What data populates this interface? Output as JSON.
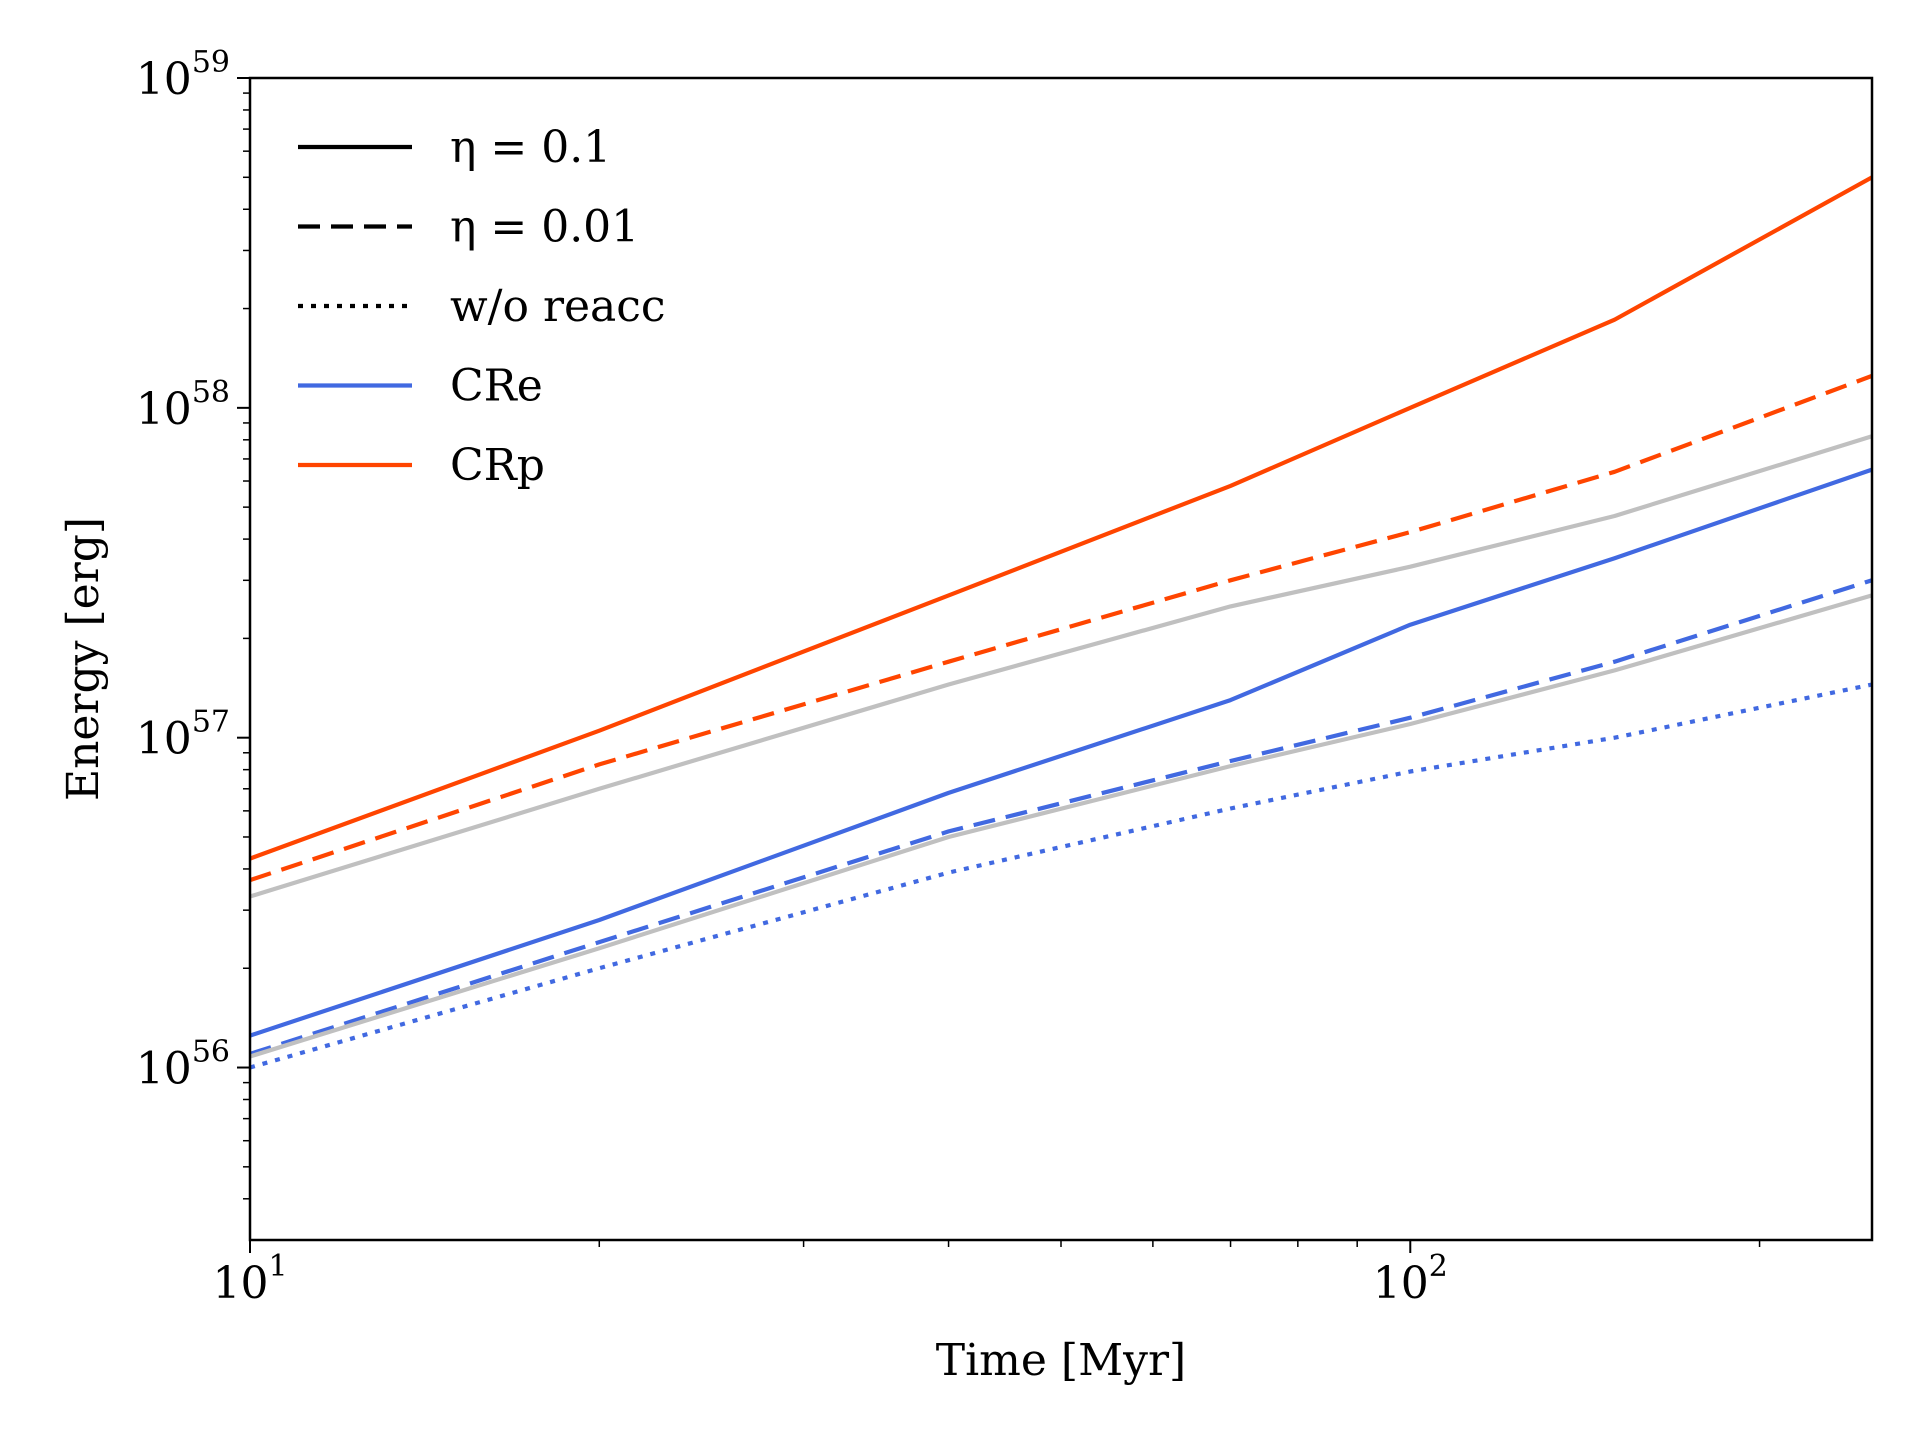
{
  "chart_data": {
    "type": "line",
    "title": "",
    "xlabel": "Time [Myr]",
    "ylabel": "Energy [erg]",
    "xscale": "log",
    "yscale": "log",
    "xlim": [
      10,
      250
    ],
    "ylim": [
      3e+55,
      1e+59
    ],
    "grid": false,
    "x_ticks": [
      {
        "value": 10,
        "base": "10",
        "exp": "1"
      },
      {
        "value": 100,
        "base": "10",
        "exp": "2"
      }
    ],
    "y_ticks": [
      {
        "value": 1e+56,
        "base": "10",
        "exp": "56"
      },
      {
        "value": 1e+57,
        "base": "10",
        "exp": "57"
      },
      {
        "value": 1e+58,
        "base": "10",
        "exp": "58"
      },
      {
        "value": 1e+59,
        "base": "10",
        "exp": "59"
      }
    ],
    "legend_position": "top-left",
    "legend": [
      {
        "label": "η = 0.1",
        "style": "solid",
        "color": "#000000"
      },
      {
        "label": "η = 0.01",
        "style": "dashed",
        "color": "#000000"
      },
      {
        "label": "w/o reacc",
        "style": "dotted",
        "color": "#000000"
      },
      {
        "label": "CRe",
        "style": "solid",
        "color": "#4169e1"
      },
      {
        "label": "CRp",
        "style": "solid",
        "color": "#ff4500"
      }
    ],
    "series": [
      {
        "name": "CRp η=0.1",
        "color": "#ff4500",
        "style": "solid",
        "x": [
          10,
          20,
          40,
          70,
          100,
          150,
          250
        ],
        "y": [
          4.3e+56,
          1.05e+57,
          2.7e+57,
          5.8e+57,
          1e+58,
          1.85e+58,
          5e+58
        ]
      },
      {
        "name": "CRp η=0.01",
        "color": "#ff4500",
        "style": "dashed",
        "x": [
          10,
          20,
          40,
          70,
          100,
          150,
          250
        ],
        "y": [
          3.7e+56,
          8.3e+56,
          1.7e+57,
          3e+57,
          4.2e+57,
          6.4e+57,
          1.25e+58
        ]
      },
      {
        "name": "grey upper",
        "color": "#c0c0c0",
        "style": "solid",
        "x": [
          10,
          20,
          40,
          70,
          100,
          150,
          250
        ],
        "y": [
          3.3e+56,
          7e+56,
          1.45e+57,
          2.5e+57,
          3.3e+57,
          4.7e+57,
          8.2e+57
        ]
      },
      {
        "name": "CRe η=0.1",
        "color": "#4169e1",
        "style": "solid",
        "x": [
          10,
          20,
          40,
          70,
          100,
          150,
          250
        ],
        "y": [
          1.25e+56,
          2.8e+56,
          6.8e+56,
          1.3e+57,
          2.2e+57,
          3.5e+57,
          6.5e+57
        ]
      },
      {
        "name": "CRe η=0.01",
        "color": "#4169e1",
        "style": "dashed",
        "x": [
          10,
          20,
          40,
          70,
          100,
          150,
          250
        ],
        "y": [
          1.1e+56,
          2.4e+56,
          5.2e+56,
          8.5e+56,
          1.15e+57,
          1.7e+57,
          3e+57
        ]
      },
      {
        "name": "grey lower",
        "color": "#c0c0c0",
        "style": "solid",
        "x": [
          10,
          20,
          40,
          70,
          100,
          150,
          250
        ],
        "y": [
          1.08e+56,
          2.3e+56,
          5e+56,
          8.2e+56,
          1.1e+57,
          1.6e+57,
          2.7e+57
        ]
      },
      {
        "name": "CRe w/o reacc",
        "color": "#4169e1",
        "style": "dotted",
        "x": [
          10,
          20,
          40,
          70,
          100,
          150,
          250
        ],
        "y": [
          1e+56,
          2e+56,
          3.9e+56,
          6.1e+56,
          7.9e+56,
          1e+57,
          1.45e+57
        ]
      }
    ]
  }
}
